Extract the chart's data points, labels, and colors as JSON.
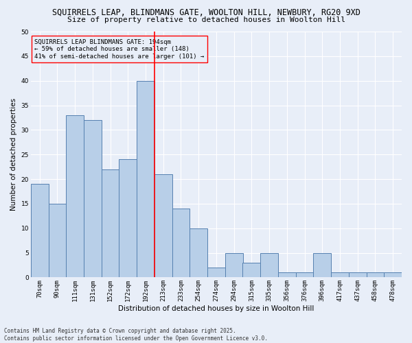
{
  "title": "SQUIRRELS LEAP, BLINDMANS GATE, WOOLTON HILL, NEWBURY, RG20 9XD",
  "subtitle": "Size of property relative to detached houses in Woolton Hill",
  "xlabel": "Distribution of detached houses by size in Woolton Hill",
  "ylabel": "Number of detached properties",
  "categories": [
    "70sqm",
    "90sqm",
    "111sqm",
    "131sqm",
    "152sqm",
    "172sqm",
    "192sqm",
    "213sqm",
    "233sqm",
    "254sqm",
    "274sqm",
    "294sqm",
    "315sqm",
    "335sqm",
    "356sqm",
    "376sqm",
    "396sqm",
    "417sqm",
    "437sqm",
    "458sqm",
    "478sqm"
  ],
  "hist_values": [
    19,
    15,
    33,
    32,
    22,
    24,
    40,
    21,
    14,
    10,
    2,
    5,
    3,
    5,
    1,
    1,
    5,
    1,
    1,
    1,
    1
  ],
  "bar_color": "#b8cfe8",
  "bar_edge_color": "#5580b0",
  "red_line_index": 6,
  "ylim": [
    0,
    50
  ],
  "yticks": [
    0,
    5,
    10,
    15,
    20,
    25,
    30,
    35,
    40,
    45,
    50
  ],
  "annotation_text": "SQUIRRELS LEAP BLINDMANS GATE: 194sqm\n← 59% of detached houses are smaller (148)\n41% of semi-detached houses are larger (101) →",
  "footnote": "Contains HM Land Registry data © Crown copyright and database right 2025.\nContains public sector information licensed under the Open Government Licence v3.0.",
  "bg_color": "#e8eef8",
  "grid_color": "#ffffff",
  "title_fontsize": 8.5,
  "subtitle_fontsize": 8.0,
  "ylabel_fontsize": 7.5,
  "xlabel_fontsize": 7.5,
  "tick_fontsize": 6.5,
  "annot_fontsize": 6.5,
  "footnote_fontsize": 5.5
}
